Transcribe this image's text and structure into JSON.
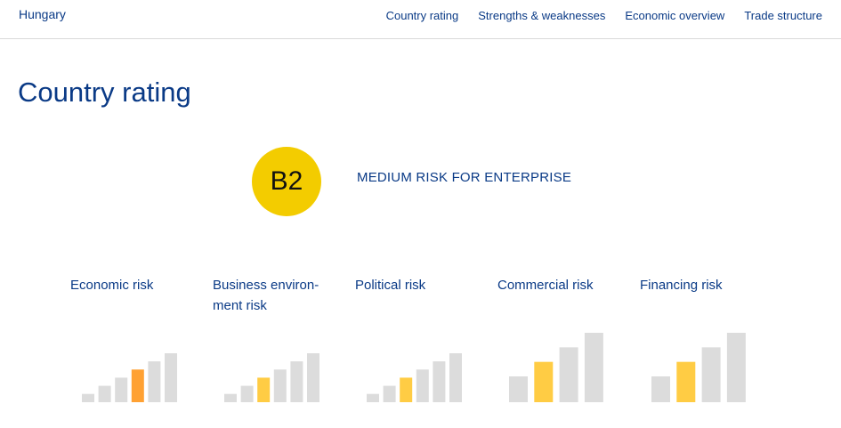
{
  "header": {
    "country": "Hungary",
    "nav": [
      "Country rating",
      "Strengths & weaknesses",
      "Economic overview",
      "Trade structure"
    ]
  },
  "page_title": "Country rating",
  "rating": {
    "grade": "B2",
    "description": "MEDIUM RISK FOR ENTERPRISE",
    "badge_color": "#f3cc00"
  },
  "colors": {
    "inactive": "#dcdcdc",
    "highlight_yellow": "#ffcc44",
    "highlight_orange": "#ffa133"
  },
  "risks": [
    {
      "label": "Economic risk",
      "level": 4,
      "scale": 6,
      "highlight": "orange"
    },
    {
      "label": "Business environ-ment risk",
      "level": 3,
      "scale": 6,
      "highlight": "yellow"
    },
    {
      "label": "Political risk",
      "level": 3,
      "scale": 6,
      "highlight": "yellow"
    },
    {
      "label": "Commercial risk",
      "level": 2,
      "scale": 4,
      "highlight": "yellow"
    },
    {
      "label": "Financing risk",
      "level": 2,
      "scale": 4,
      "highlight": "yellow"
    }
  ]
}
